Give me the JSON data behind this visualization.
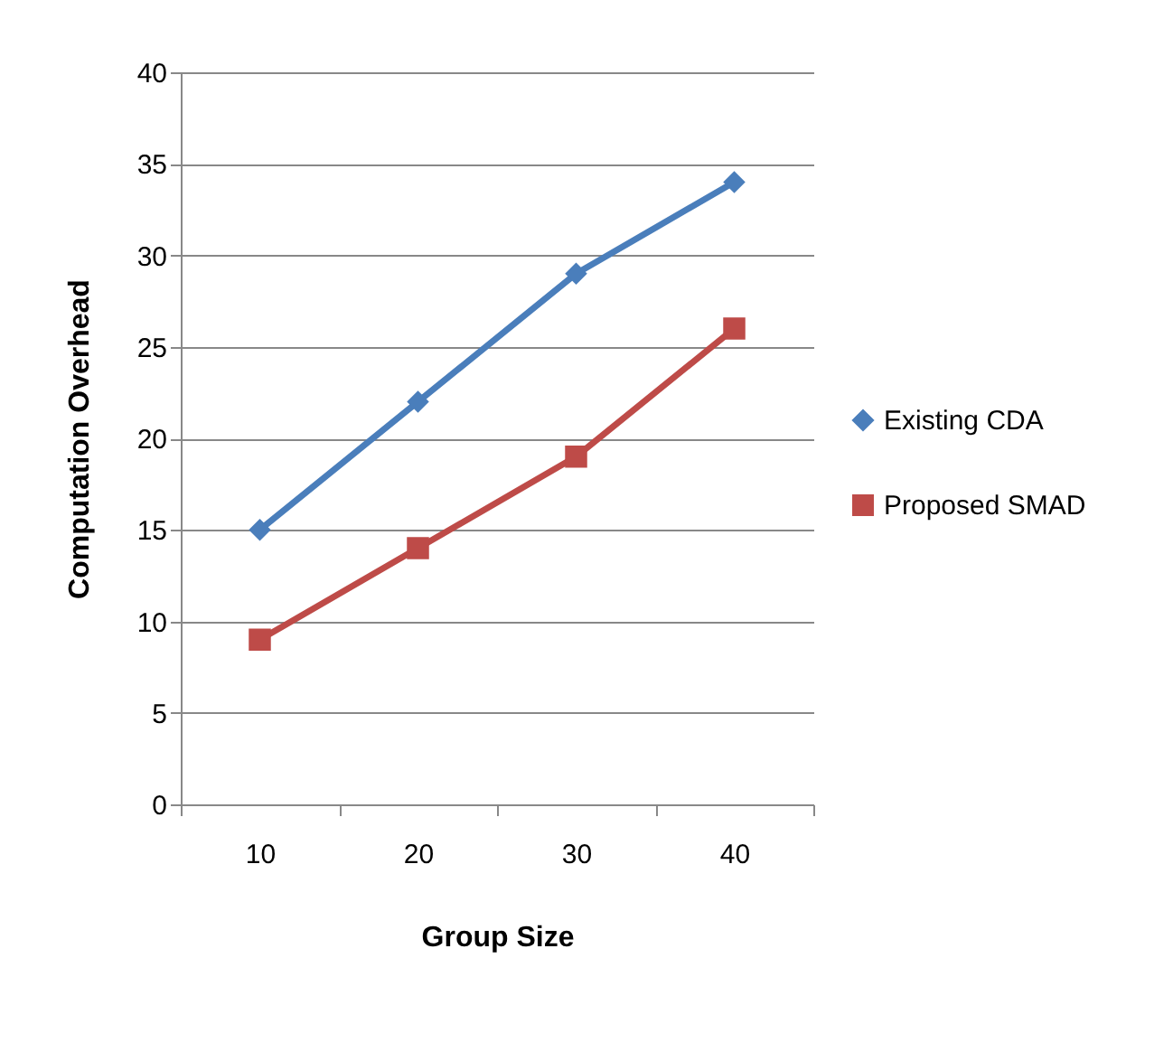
{
  "chart_data": {
    "type": "line",
    "xlabel": "Group Size",
    "ylabel": "Computation  Overhead",
    "categories": [
      "10",
      "20",
      "30",
      "40"
    ],
    "series": [
      {
        "name": "Existing  CDA",
        "color": "#4a7ebb",
        "marker": "diamond",
        "values": [
          15,
          22,
          29,
          34
        ]
      },
      {
        "name": "Proposed SMAD",
        "color": "#be4b48",
        "marker": "square",
        "values": [
          9,
          14,
          19,
          26
        ]
      }
    ],
    "ylim": [
      0,
      40
    ],
    "yticks": [
      0,
      5,
      10,
      15,
      20,
      25,
      30,
      35,
      40
    ],
    "grid": "y",
    "legend": "right"
  }
}
